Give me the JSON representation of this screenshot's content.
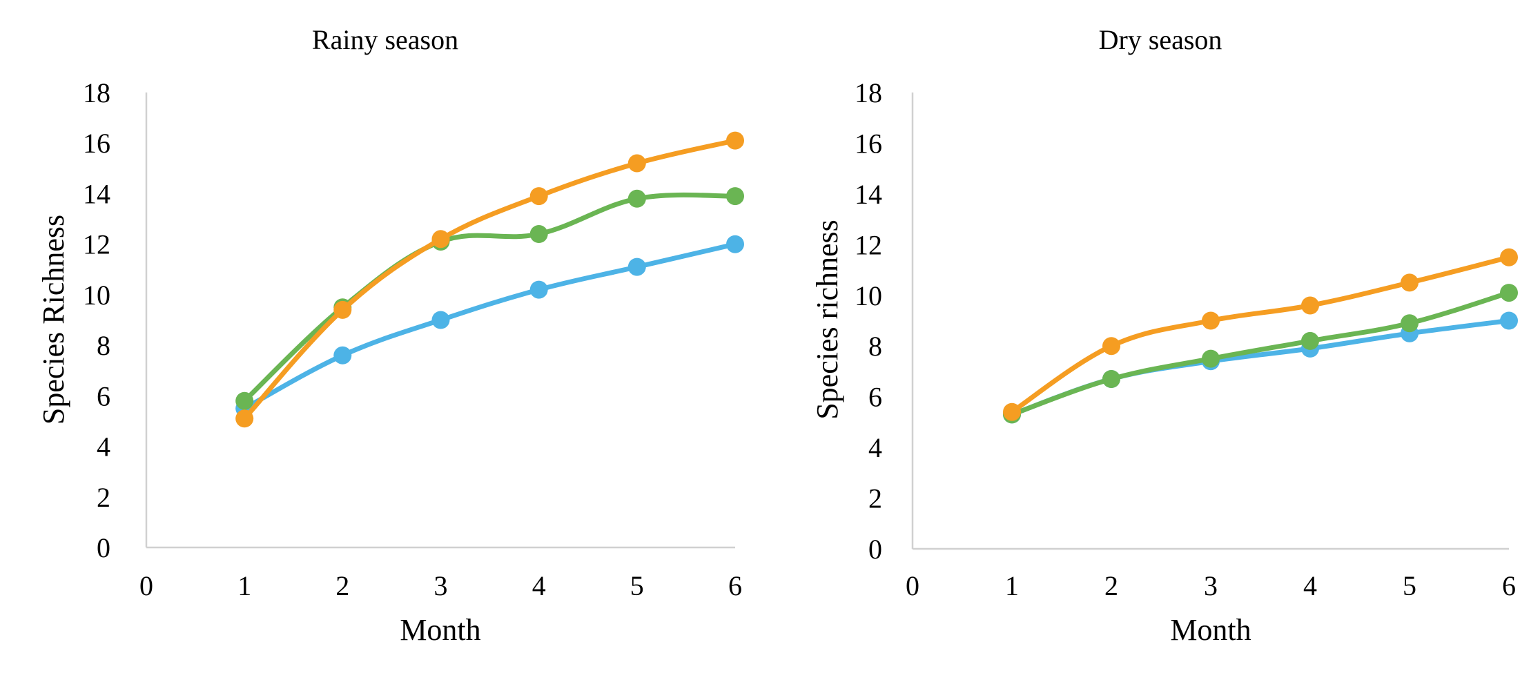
{
  "chart_data": [
    {
      "type": "line",
      "title": "Rainy season",
      "xlabel": "Month",
      "ylabel": "Species Richness",
      "xlim": [
        0,
        6
      ],
      "ylim": [
        0,
        18
      ],
      "x_ticks": [
        "0",
        "1",
        "2",
        "3",
        "4",
        "5",
        "6"
      ],
      "y_ticks": [
        "0",
        "2",
        "4",
        "6",
        "8",
        "10",
        "12",
        "14",
        "16",
        "18"
      ],
      "grid": false,
      "x": [
        1,
        2,
        3,
        4,
        5,
        6
      ],
      "series": [
        {
          "color": "#4db3e6",
          "values": [
            5.5,
            7.6,
            9.0,
            10.2,
            11.1,
            12.0
          ]
        },
        {
          "color": "#6ab553",
          "values": [
            5.8,
            9.5,
            12.1,
            12.4,
            13.8,
            13.9
          ]
        },
        {
          "color": "#f59d22",
          "values": [
            5.1,
            9.4,
            12.2,
            13.9,
            15.2,
            16.1
          ]
        }
      ]
    },
    {
      "type": "line",
      "title": "Dry season",
      "xlabel": "Month",
      "ylabel": "Species richness",
      "xlim": [
        0,
        6
      ],
      "ylim": [
        0,
        18
      ],
      "x_ticks": [
        "0",
        "1",
        "2",
        "3",
        "4",
        "5",
        "6"
      ],
      "y_ticks": [
        "0",
        "2",
        "4",
        "6",
        "8",
        "10",
        "12",
        "14",
        "16",
        "18"
      ],
      "grid": false,
      "x": [
        1,
        2,
        3,
        4,
        5,
        6
      ],
      "series": [
        {
          "color": "#4db3e6",
          "values": [
            5.3,
            6.7,
            7.4,
            7.9,
            8.5,
            9.0
          ]
        },
        {
          "color": "#6ab553",
          "values": [
            5.3,
            6.7,
            7.5,
            8.2,
            8.9,
            10.1
          ]
        },
        {
          "color": "#f59d22",
          "values": [
            5.4,
            8.0,
            9.0,
            9.6,
            10.5,
            11.5
          ]
        }
      ]
    }
  ]
}
